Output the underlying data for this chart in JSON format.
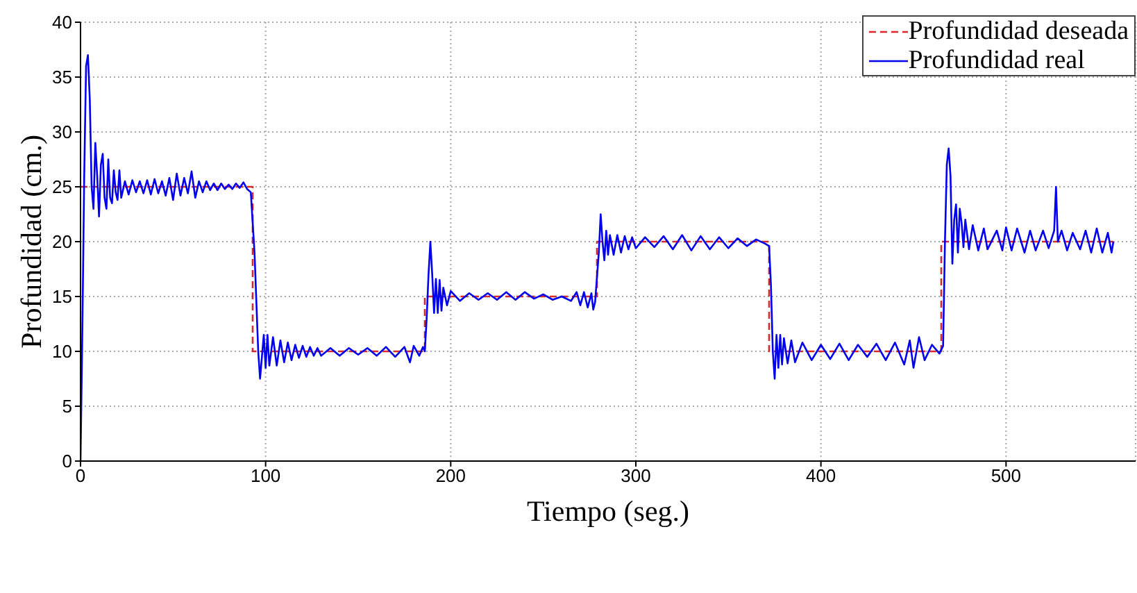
{
  "chart_data": {
    "type": "line",
    "xlabel": "Tiempo (seg.)",
    "ylabel": "Profundidad (cm.)",
    "xlim": [
      0,
      570
    ],
    "xticks": [
      0,
      100,
      200,
      300,
      400,
      500
    ],
    "ylim": [
      0,
      40
    ],
    "yticks": [
      0,
      5,
      10,
      15,
      20,
      25,
      30,
      35,
      40
    ],
    "grid": true,
    "legend": "top right",
    "marker": "none",
    "series": [
      {
        "name": "Profundidad deseada",
        "color": "#d42a2a",
        "line_style": "dashed",
        "x": [
          0,
          93,
          93,
          186,
          186,
          279,
          279,
          372,
          372,
          465,
          465,
          558
        ],
        "values": [
          25,
          25,
          10,
          10,
          15,
          15,
          20,
          20,
          10,
          10,
          20,
          20
        ]
      },
      {
        "name": "Profundidad real",
        "color": "#0000ee",
        "line_style": "solid",
        "x": [
          0,
          1,
          2,
          3,
          4,
          5,
          6,
          7,
          8,
          9,
          10,
          11,
          12,
          13,
          14,
          15,
          16,
          17,
          18,
          19,
          20,
          21,
          22,
          24,
          26,
          28,
          30,
          32,
          34,
          36,
          38,
          40,
          42,
          44,
          46,
          48,
          50,
          52,
          54,
          56,
          58,
          60,
          62,
          64,
          66,
          68,
          70,
          72,
          74,
          76,
          78,
          80,
          82,
          84,
          86,
          88,
          90,
          92,
          94,
          96,
          97,
          98,
          99,
          100,
          101,
          102,
          104,
          106,
          108,
          110,
          112,
          114,
          116,
          118,
          120,
          122,
          124,
          126,
          128,
          130,
          135,
          140,
          145,
          150,
          155,
          160,
          165,
          170,
          175,
          178,
          180,
          183,
          185,
          186,
          187,
          188,
          189,
          190,
          191,
          192,
          193,
          194,
          195,
          196,
          198,
          200,
          205,
          210,
          215,
          220,
          225,
          230,
          235,
          240,
          245,
          250,
          255,
          260,
          265,
          268,
          270,
          272,
          274,
          276,
          277,
          278,
          280,
          281,
          282,
          283,
          284,
          285,
          286,
          288,
          290,
          292,
          294,
          296,
          298,
          300,
          305,
          310,
          315,
          320,
          325,
          330,
          335,
          340,
          345,
          350,
          355,
          360,
          365,
          370,
          372,
          373,
          374,
          375,
          376,
          377,
          378,
          379,
          380,
          382,
          384,
          386,
          390,
          395,
          400,
          405,
          410,
          415,
          420,
          425,
          430,
          435,
          440,
          445,
          448,
          450,
          453,
          456,
          460,
          464,
          466,
          467,
          468,
          469,
          470,
          471,
          472,
          473,
          474,
          475,
          476,
          477,
          478,
          480,
          482,
          485,
          488,
          490,
          495,
          498,
          500,
          503,
          506,
          510,
          513,
          516,
          520,
          523,
          526,
          527,
          528,
          530,
          533,
          536,
          540,
          543,
          546,
          549,
          552,
          555,
          557,
          558
        ],
        "values": [
          0,
          12,
          26,
          36,
          37,
          33,
          25,
          23,
          29,
          26,
          22.3,
          27,
          28,
          24,
          23,
          27.5,
          24,
          23.5,
          26.5,
          24.5,
          23.8,
          26.5,
          24,
          25.5,
          24.3,
          25.6,
          24.5,
          25.5,
          24.4,
          25.6,
          24.3,
          25.7,
          24.4,
          25.5,
          24.2,
          25.8,
          23.8,
          26.2,
          24.2,
          25.8,
          24.4,
          26.4,
          24,
          25.5,
          24.5,
          25.5,
          24.7,
          25.3,
          24.7,
          25.3,
          24.8,
          25.2,
          24.8,
          25.3,
          24.9,
          25.4,
          24.8,
          24.5,
          19,
          10,
          7.5,
          9.5,
          11.5,
          8.5,
          11.5,
          8.7,
          11.3,
          8.7,
          11,
          9,
          10.8,
          9.2,
          10.6,
          9.4,
          10.5,
          9.5,
          10.4,
          9.6,
          10.3,
          9.6,
          10.3,
          9.6,
          10.3,
          9.7,
          10.3,
          9.6,
          10.4,
          9.5,
          10.4,
          9,
          10.5,
          9.6,
          10.4,
          10,
          13,
          17,
          20,
          17,
          13.5,
          16.6,
          13.5,
          16.5,
          13.7,
          15.8,
          14.2,
          15.5,
          14.6,
          15.3,
          14.7,
          15.3,
          14.7,
          15.4,
          14.7,
          15.4,
          14.8,
          15.2,
          14.7,
          15,
          14.6,
          15.4,
          14.2,
          15.4,
          14,
          15.3,
          13.8,
          14.5,
          19,
          22.5,
          20,
          18.3,
          21,
          18.8,
          20.6,
          18.8,
          20.6,
          19,
          20.5,
          19.3,
          20.4,
          19.4,
          20.4,
          19.5,
          20.5,
          19.3,
          20.6,
          19.2,
          20.5,
          19.3,
          20.4,
          19.4,
          20.3,
          19.6,
          20.2,
          19.8,
          19.6,
          16,
          10,
          7.5,
          11.5,
          8.5,
          11.5,
          8.8,
          11.2,
          8.9,
          11,
          9,
          10.8,
          9.2,
          10.6,
          9.3,
          10.7,
          9.2,
          10.6,
          9.5,
          10.7,
          9.2,
          10.8,
          8.8,
          11,
          8.5,
          11.3,
          9.2,
          10.6,
          9.8,
          10.5,
          20,
          27,
          28.5,
          26,
          18,
          22,
          23.4,
          19,
          23,
          21.7,
          19.5,
          22,
          19.3,
          21.5,
          19.2,
          21.2,
          19.3,
          21,
          19.2,
          21.3,
          19.2,
          21.2,
          19,
          21,
          19.2,
          21,
          19.4,
          21,
          25,
          20,
          21,
          19.2,
          20.8,
          19.3,
          21,
          19,
          21.2,
          19,
          20.8,
          19,
          20
        ]
      }
    ]
  }
}
